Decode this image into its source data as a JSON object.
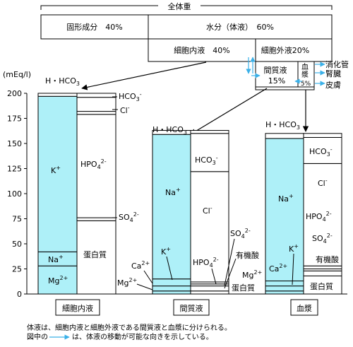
{
  "header": {
    "total": "全体重",
    "solid": "固形成分　40%",
    "water": "水分（体液）　60%",
    "intracellular": "細胞内液　40%",
    "extracellular": "細胞外液20%",
    "interstitial_1": "間質液",
    "interstitial_2": "15%",
    "plasma_1": "血",
    "plasma_2": "漿",
    "plasma_pct": "5%"
  },
  "exchange": {
    "gi": "消化管",
    "kidney": "腎臓",
    "skin": "皮膚"
  },
  "axis": {
    "unit": "(mEq/l)",
    "ticks": [
      "0",
      "25",
      "50",
      "75",
      "100",
      "125",
      "150",
      "175",
      "200"
    ]
  },
  "chart_data": {
    "type": "stacked-bar",
    "y_unit": "mEq/l",
    "ylim": [
      0,
      200
    ],
    "columns": [
      {
        "name": "細胞内液",
        "cations": [
          {
            "label": "Mg2+",
            "value": 28
          },
          {
            "label": "Na+",
            "value": 14
          },
          {
            "label": "K+",
            "value": 155
          },
          {
            "label": "H・HCO3",
            "value": 3
          }
        ],
        "anions": [
          {
            "label": "蛋白質",
            "value": 73
          },
          {
            "label": "SO4 2-",
            "value": 3
          },
          {
            "label": "HPO4 2-",
            "value": 103
          },
          {
            "label": "Cl-",
            "value": 3
          },
          {
            "label": "HCO3-",
            "value": 14
          },
          {
            "label": "H・HCO3",
            "value": 4
          }
        ]
      },
      {
        "name": "間質液",
        "cations": [
          {
            "label": "Mg2+",
            "value": 3
          },
          {
            "label": "Ca2+",
            "value": 5
          },
          {
            "label": "(other)",
            "value": 7
          },
          {
            "label": "Na+",
            "value": 144
          },
          {
            "label": "H・HCO3",
            "value": 4
          }
        ],
        "anions": [
          {
            "label": "蛋白質",
            "value": 3
          },
          {
            "label": "有機酸",
            "value": 5
          },
          {
            "label": "SO4 2-",
            "value": 2
          },
          {
            "label": "HPO4 2-",
            "value": 2
          },
          {
            "label": "Cl-",
            "value": 110
          },
          {
            "label": "HCO3-",
            "value": 38
          },
          {
            "label": "H・HCO3",
            "value": 3
          }
        ]
      },
      {
        "name": "血漿",
        "cations": [
          {
            "label": "Mg2+",
            "value": 3
          },
          {
            "label": "Ca2+",
            "value": 5
          },
          {
            "label": "K+",
            "value": 5
          },
          {
            "label": "Na+",
            "value": 142
          },
          {
            "label": "H・HCO3",
            "value": 5
          }
        ],
        "anions": [
          {
            "label": "蛋白質",
            "value": 18
          },
          {
            "label": "有機酸",
            "value": 5
          },
          {
            "label": "SO4 2-",
            "value": 2
          },
          {
            "label": "HPO4 2-",
            "value": 3
          },
          {
            "label": "Cl-",
            "value": 102
          },
          {
            "label": "HCO3-",
            "value": 26
          },
          {
            "label": "H・HCO3",
            "value": 4
          }
        ]
      }
    ]
  },
  "labels": {
    "h_hco3": "H・HCO",
    "h_hco3_sub": "3",
    "hco3": "HCO",
    "hco3_sub": "3",
    "minus": "-",
    "cl": "Cl",
    "hpo4": "HPO",
    "hpo4_sub": "4",
    "so4": "SO",
    "so4_sub": "4",
    "charge2minus": "2-",
    "charge2plus": "2+",
    "plus": "+",
    "k": "K",
    "na": "Na",
    "mg": "Mg",
    "ca": "Ca",
    "protein": "蛋白質",
    "organic_acid": "有機酸"
  },
  "colors": {
    "cation": "#aef0f8",
    "arrow_blue": "#3ab0e8"
  },
  "notes": {
    "line1": "体液は、細胞内液と細胞外液である間質液と血漿に分けられる。",
    "line2_a": "図中の",
    "line2_b": "は、体液の移動が可能な向きを示している。"
  }
}
